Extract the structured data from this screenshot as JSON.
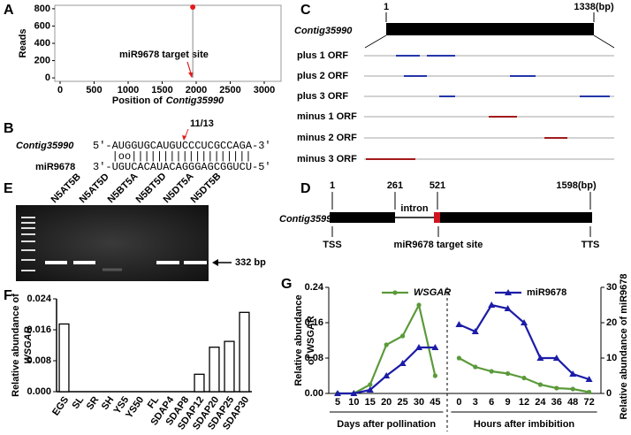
{
  "panel_labels": [
    "A",
    "B",
    "C",
    "D",
    "E",
    "F",
    "G"
  ],
  "chart_data": [
    {
      "type": "stem",
      "ylabel": "Reads",
      "xlabel": [
        "Position of",
        "Contig35990"
      ],
      "x": [
        1950
      ],
      "values": [
        820
      ],
      "color": "#e31a1c",
      "xlim": [
        -78,
        3247
      ],
      "ylim": [
        -40,
        840
      ],
      "xticks": [
        0,
        500,
        1000,
        1500,
        2000,
        2500,
        3000
      ],
      "yticks": [
        0,
        200,
        400,
        600,
        800
      ],
      "annotation": "miR9678 target site"
    },
    {
      "type": "bar",
      "ylabel": [
        "Relative abundance of",
        "WSGAR"
      ],
      "categories": [
        "EGS",
        "SL",
        "SR",
        "SH",
        "YS5",
        "YS50",
        "FL",
        "SDAP4",
        "SDAP8",
        "SDAP12",
        "SDAP20",
        "SDAP25",
        "SDAP30"
      ],
      "values": [
        0.0175,
        0,
        0,
        0,
        0,
        0,
        0,
        0,
        0,
        0.0045,
        0.0115,
        0.013,
        0.0205
      ],
      "color": "#ffffff",
      "ylim": [
        0,
        0.024
      ],
      "yticks": [
        {
          "value": 0,
          "label": "0.000"
        },
        {
          "value": 0.008,
          "label": "0.008"
        },
        {
          "value": 0.016,
          "label": "0.016"
        },
        {
          "value": 0.024,
          "label": "0.024"
        }
      ]
    },
    {
      "type": "line",
      "ylabel": [
        "Relative abundance",
        "of WSGAR"
      ],
      "y2label": "Relative abundance of miR9678",
      "groups": [
        {
          "label": "Days after pollination",
          "categories": [
            "5",
            "10",
            "15",
            "20",
            "25",
            "30",
            "45"
          ]
        },
        {
          "label": "Hours after imbibition",
          "categories": [
            "0",
            "3",
            "6",
            "9",
            "12",
            "24",
            "36",
            "48",
            "72"
          ]
        }
      ],
      "series": [
        {
          "name": "WSGAR",
          "color": "#5b9a3a",
          "values": [
            0,
            0,
            0.02,
            0.11,
            0.13,
            0.2,
            0.04,
            0.08,
            0.06,
            0.05,
            0.045,
            0.035,
            0.02,
            0.012,
            0.01,
            0.003
          ]
        },
        {
          "name": "miR9678",
          "color": "#1c1ca8",
          "axis": "y2",
          "values": [
            0,
            0,
            1,
            5,
            8.5,
            13,
            13,
            19.5,
            17.5,
            25,
            24,
            20,
            10,
            10,
            5.5,
            4
          ]
        }
      ],
      "ylim": [
        0,
        0.24
      ],
      "yticks": [
        {
          "value": 0,
          "label": "0.00"
        },
        {
          "value": 0.08,
          "label": "0.08"
        },
        {
          "value": 0.16,
          "label": "0.16"
        },
        {
          "value": 0.24,
          "label": "0.24"
        }
      ],
      "y2lim": [
        0,
        30
      ],
      "y2ticks": [
        0,
        10,
        20,
        30
      ],
      "legend": "top"
    }
  ],
  "panels": {
    "B": {
      "marker": "11/13",
      "rows": [
        {
          "name": "Contig35990",
          "sequence": "5'-AUGGUGCAUGUCCCUCGCCAGA-3'"
        },
        {
          "name": "miR9678",
          "sequence": "3'-UGUCACAUACAGGGAGCGGUCU-5'"
        }
      ],
      "pairing": "|oo|||||||||||||||||||"
    },
    "C": {
      "start": "1",
      "end": "1338(bp)",
      "name": "Contig35990",
      "rows": [
        "plus 1 ORF",
        "plus 2 ORF",
        "plus 3 ORF",
        "minus 1 ORF",
        "minus 2 ORF",
        "minus 3 ORF"
      ]
    },
    "D": {
      "positions": [
        "1",
        "261",
        "521",
        "1598(bp)"
      ],
      "name": "Contig35990",
      "intron": "intron",
      "sites": [
        "TSS",
        "miR9678 target site",
        "TTS"
      ]
    },
    "E": {
      "lanes": [
        "N5AT5B",
        "N5AT5D",
        "N5BT5A",
        "N5BT5D",
        "N5DT5A",
        "N5DT5B"
      ],
      "band": "332 bp"
    }
  }
}
